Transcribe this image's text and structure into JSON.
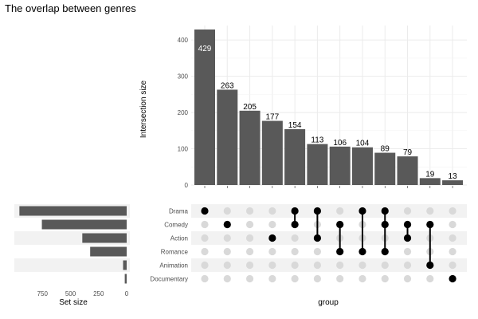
{
  "chart_data": {
    "type": "bar",
    "title": "The overlap between genres",
    "intersection_axis_label": "Intersection size",
    "set_size_axis_label": "Set size",
    "group_axis_label": "group",
    "y_ticks": [
      "0",
      "100",
      "200",
      "300",
      "400"
    ],
    "set_size_ticks": [
      "750",
      "500",
      "250",
      "0"
    ],
    "ylim": [
      0,
      440
    ],
    "set_size_xlim": [
      0,
      1000
    ],
    "grid": true,
    "sets": [
      "Drama",
      "Comedy",
      "Action",
      "Romance",
      "Animation",
      "Documentary"
    ],
    "set_sizes": [
      955,
      755,
      395,
      325,
      32,
      17
    ],
    "intersections": [
      {
        "sets": [
          "Drama"
        ],
        "size": 429
      },
      {
        "sets": [
          "Comedy"
        ],
        "size": 263
      },
      {
        "sets": [],
        "size": 205
      },
      {
        "sets": [
          "Action"
        ],
        "size": 177
      },
      {
        "sets": [
          "Drama",
          "Comedy"
        ],
        "size": 154
      },
      {
        "sets": [
          "Drama",
          "Action"
        ],
        "size": 113
      },
      {
        "sets": [
          "Comedy",
          "Romance"
        ],
        "size": 106
      },
      {
        "sets": [
          "Drama",
          "Romance"
        ],
        "size": 104
      },
      {
        "sets": [
          "Drama",
          "Comedy",
          "Romance"
        ],
        "size": 89
      },
      {
        "sets": [
          "Comedy",
          "Action"
        ],
        "size": 79
      },
      {
        "sets": [
          "Comedy",
          "Animation"
        ],
        "size": 19
      },
      {
        "sets": [
          "Documentary"
        ],
        "size": 13
      }
    ],
    "bar_labels": [
      "429",
      "263",
      "205",
      "177",
      "154",
      "113",
      "106",
      "104",
      "89",
      "79",
      "19",
      "13"
    ],
    "colors": {
      "bar": "#595959",
      "dot_on": "#000000",
      "dot_off": "#d9d9d9",
      "band": "#f2f2f2",
      "grid": "#ebebeb",
      "first_label": "#ffffff"
    }
  }
}
